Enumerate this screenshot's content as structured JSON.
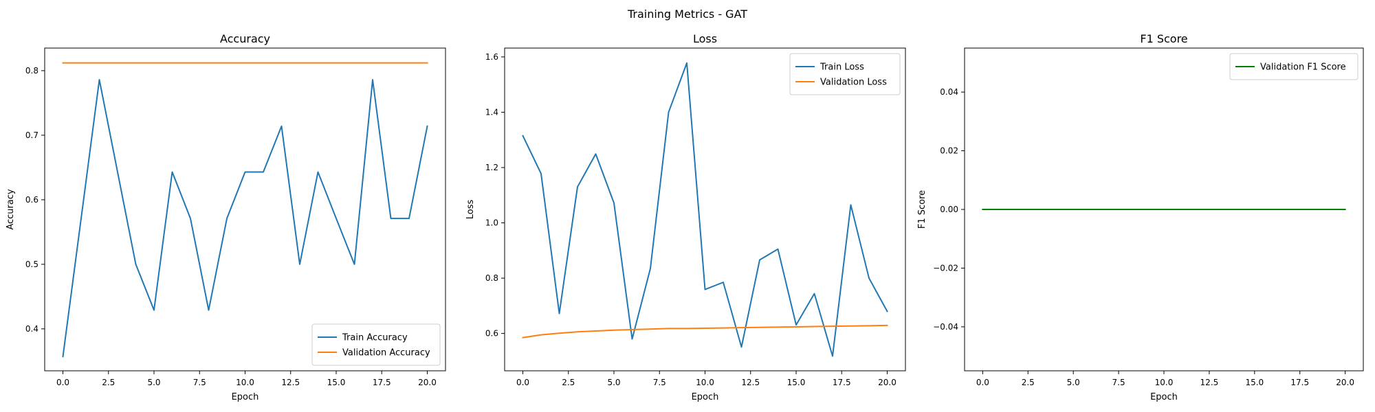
{
  "figure": {
    "suptitle": "Training Metrics - GAT"
  },
  "chart_data": [
    {
      "type": "line",
      "title": "Accuracy",
      "xlabel": "Epoch",
      "ylabel": "Accuracy",
      "xlim": [
        -1,
        21
      ],
      "ylim": [
        0.335,
        0.835
      ],
      "xticks": [
        0,
        2.5,
        5,
        7.5,
        10,
        12.5,
        15,
        17.5,
        20
      ],
      "xtick_labels": [
        "0.0",
        "2.5",
        "5.0",
        "7.5",
        "10.0",
        "12.5",
        "15.0",
        "17.5",
        "20.0"
      ],
      "yticks": [
        0.4,
        0.5,
        0.6,
        0.7,
        0.8
      ],
      "ytick_labels": [
        "0.4",
        "0.5",
        "0.6",
        "0.7",
        "0.8"
      ],
      "legend_position": "lower-right",
      "x": [
        0,
        1,
        2,
        3,
        4,
        5,
        6,
        7,
        8,
        9,
        10,
        11,
        12,
        13,
        14,
        15,
        16,
        17,
        18,
        19,
        20
      ],
      "series": [
        {
          "name": "Train Accuracy",
          "color": "#1f77b4",
          "values": [
            0.357,
            0.571,
            0.786,
            0.643,
            0.5,
            0.429,
            0.643,
            0.571,
            0.429,
            0.571,
            0.643,
            0.643,
            0.714,
            0.5,
            0.643,
            0.571,
            0.5,
            0.786,
            0.571,
            0.571,
            0.714
          ]
        },
        {
          "name": "Validation Accuracy",
          "color": "#ff7f0e",
          "values": [
            0.812,
            0.812,
            0.812,
            0.812,
            0.812,
            0.812,
            0.812,
            0.812,
            0.812,
            0.812,
            0.812,
            0.812,
            0.812,
            0.812,
            0.812,
            0.812,
            0.812,
            0.812,
            0.812,
            0.812,
            0.812
          ]
        }
      ]
    },
    {
      "type": "line",
      "title": "Loss",
      "xlabel": "Epoch",
      "ylabel": "Loss",
      "xlim": [
        -1,
        21
      ],
      "ylim": [
        0.465,
        1.632
      ],
      "xticks": [
        0,
        2.5,
        5,
        7.5,
        10,
        12.5,
        15,
        17.5,
        20
      ],
      "xtick_labels": [
        "0.0",
        "2.5",
        "5.0",
        "7.5",
        "10.0",
        "12.5",
        "15.0",
        "17.5",
        "20.0"
      ],
      "yticks": [
        0.6,
        0.8,
        1.0,
        1.2,
        1.4,
        1.6
      ],
      "ytick_labels": [
        "0.6",
        "0.8",
        "1.0",
        "1.2",
        "1.4",
        "1.6"
      ],
      "legend_position": "upper-right",
      "x": [
        0,
        1,
        2,
        3,
        4,
        5,
        6,
        7,
        8,
        9,
        10,
        11,
        12,
        13,
        14,
        15,
        16,
        17,
        18,
        19,
        20
      ],
      "series": [
        {
          "name": "Train Loss",
          "color": "#1f77b4",
          "values": [
            1.315,
            1.178,
            0.672,
            1.13,
            1.249,
            1.072,
            0.58,
            0.835,
            1.4,
            1.578,
            0.759,
            0.785,
            0.551,
            0.866,
            0.905,
            0.631,
            0.744,
            0.518,
            1.065,
            0.8,
            0.68
          ]
        },
        {
          "name": "Validation Loss",
          "color": "#ff7f0e",
          "values": [
            0.585,
            0.595,
            0.601,
            0.606,
            0.609,
            0.612,
            0.614,
            0.616,
            0.618,
            0.618,
            0.619,
            0.62,
            0.621,
            0.622,
            0.623,
            0.624,
            0.625,
            0.626,
            0.627,
            0.628,
            0.629
          ]
        }
      ]
    },
    {
      "type": "line",
      "title": "F1 Score",
      "xlabel": "Epoch",
      "ylabel": "F1 Score",
      "xlim": [
        -1,
        21
      ],
      "ylim": [
        -0.055,
        0.055
      ],
      "xticks": [
        0,
        2.5,
        5,
        7.5,
        10,
        12.5,
        15,
        17.5,
        20
      ],
      "xtick_labels": [
        "0.0",
        "2.5",
        "5.0",
        "7.5",
        "10.0",
        "12.5",
        "15.0",
        "17.5",
        "20.0"
      ],
      "yticks": [
        -0.04,
        -0.02,
        0.0,
        0.02,
        0.04
      ],
      "ytick_labels": [
        "−0.04",
        "−0.02",
        "0.00",
        "0.02",
        "0.04"
      ],
      "legend_position": "upper-right",
      "x": [
        0,
        1,
        2,
        3,
        4,
        5,
        6,
        7,
        8,
        9,
        10,
        11,
        12,
        13,
        14,
        15,
        16,
        17,
        18,
        19,
        20
      ],
      "series": [
        {
          "name": "Validation F1 Score",
          "color": "#008000",
          "values": [
            0,
            0,
            0,
            0,
            0,
            0,
            0,
            0,
            0,
            0,
            0,
            0,
            0,
            0,
            0,
            0,
            0,
            0,
            0,
            0,
            0
          ]
        }
      ]
    }
  ]
}
